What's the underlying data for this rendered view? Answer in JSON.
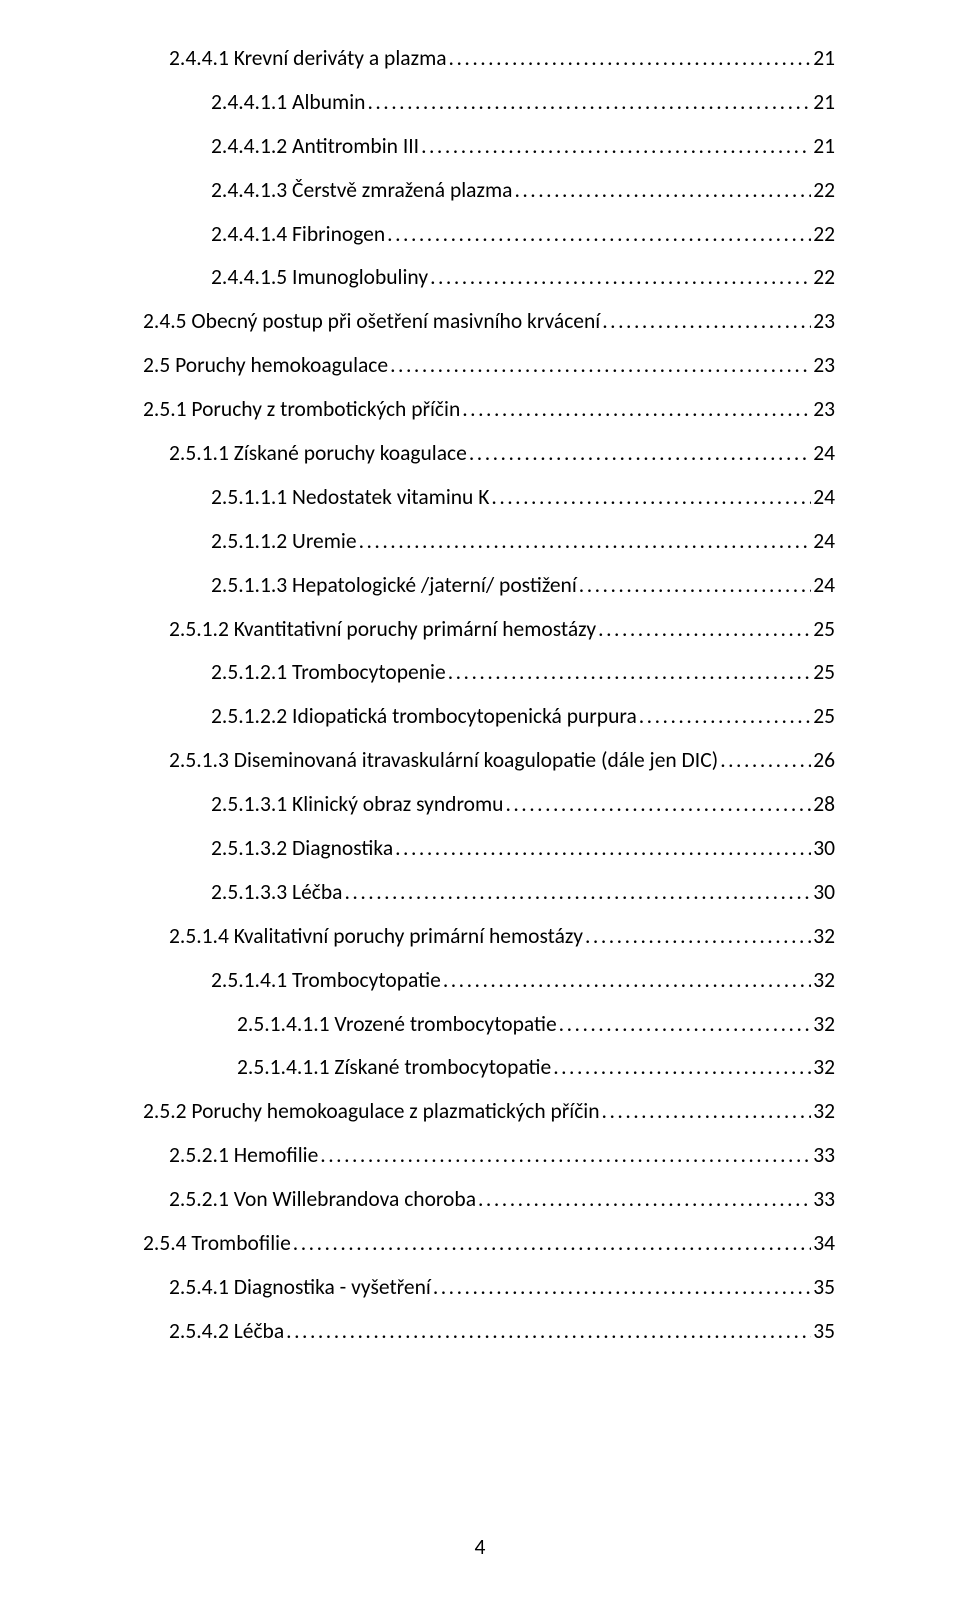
{
  "text_color": "#000000",
  "background_color": "#ffffff",
  "font_family": "Calibri",
  "font_size_pt": 16,
  "page_number": "4",
  "toc": [
    {
      "label": "2.4.4.1 Krevní deriváty a plazma",
      "page": "21",
      "indent": 0
    },
    {
      "label": "2.4.4.1.1 Albumin",
      "page": "21",
      "indent": 1
    },
    {
      "label": "2.4.4.1.2 Antitrombin III",
      "page": "21",
      "indent": 1
    },
    {
      "label": "2.4.4.1.3 Čerstvě zmražená plazma",
      "page": "22",
      "indent": 1
    },
    {
      "label": "2.4.4.1.4 Fibrinogen",
      "page": "22",
      "indent": 1
    },
    {
      "label": "2.4.4.1.5 Imunoglobuliny",
      "page": "22",
      "indent": 1
    },
    {
      "label": "2.4.5 Obecný postup při ošetření masivního krvácení",
      "page": "23",
      "indent": -1
    },
    {
      "label": "2.5 Poruchy hemokoagulace",
      "page": "23",
      "indent": -1
    },
    {
      "label": "2.5.1 Poruchy z trombotických příčin",
      "page": "23",
      "indent": -1
    },
    {
      "label": "2.5.1.1 Získané poruchy koagulace",
      "page": "24",
      "indent": 0
    },
    {
      "label": "2.5.1.1.1 Nedostatek vitaminu K",
      "page": "24",
      "indent": 1
    },
    {
      "label": "2.5.1.1.2 Uremie",
      "page": "24",
      "indent": 1
    },
    {
      "label": "2.5.1.1.3 Hepatologické /jaterní/ postižení",
      "page": "24",
      "indent": 1
    },
    {
      "label": "2.5.1.2 Kvantitativní poruchy primární hemostázy",
      "page": "25",
      "indent": 0
    },
    {
      "label": "2.5.1.2.1 Trombocytopenie",
      "page": "25",
      "indent": 1
    },
    {
      "label": "2.5.1.2.2 Idiopatická trombocytopenická purpura",
      "page": "25",
      "indent": 1
    },
    {
      "label": "2.5.1.3 Diseminovaná itravaskulární koagulopatie (dále jen DIC)",
      "page": "26",
      "indent": 0
    },
    {
      "label": "2.5.1.3.1 Klinický obraz syndromu",
      "page": "28",
      "indent": 1
    },
    {
      "label": "2.5.1.3.2 Diagnostika",
      "page": "30",
      "indent": 1
    },
    {
      "label": "2.5.1.3.3 Léčba",
      "page": "30",
      "indent": 1
    },
    {
      "label": "2.5.1.4 Kvalitativní poruchy primární hemostázy",
      "page": "32",
      "indent": 0
    },
    {
      "label": "2.5.1.4.1 Trombocytopatie",
      "page": "32",
      "indent": 1
    },
    {
      "label": "2.5.1.4.1.1 Vrozené trombocytopatie",
      "page": "32",
      "indent": 2
    },
    {
      "label": "2.5.1.4.1.1 Získané trombocytopatie",
      "page": "32",
      "indent": 2
    },
    {
      "label": "2.5.2 Poruchy hemokoagulace z plazmatických příčin",
      "page": "32",
      "indent": -1
    },
    {
      "label": "2.5.2.1 Hemofilie",
      "page": "33",
      "indent": 0
    },
    {
      "label": "2.5.2.1 Von Willebrandova choroba",
      "page": "33",
      "indent": 0
    },
    {
      "label": "2.5.4 Trombofilie",
      "page": "34",
      "indent": -1
    },
    {
      "label": "2.5.4.1 Diagnostika - vyšetření",
      "page": "35",
      "indent": 0
    },
    {
      "label": "2.5.4.2 Léčba",
      "page": "35",
      "indent": 0
    }
  ]
}
